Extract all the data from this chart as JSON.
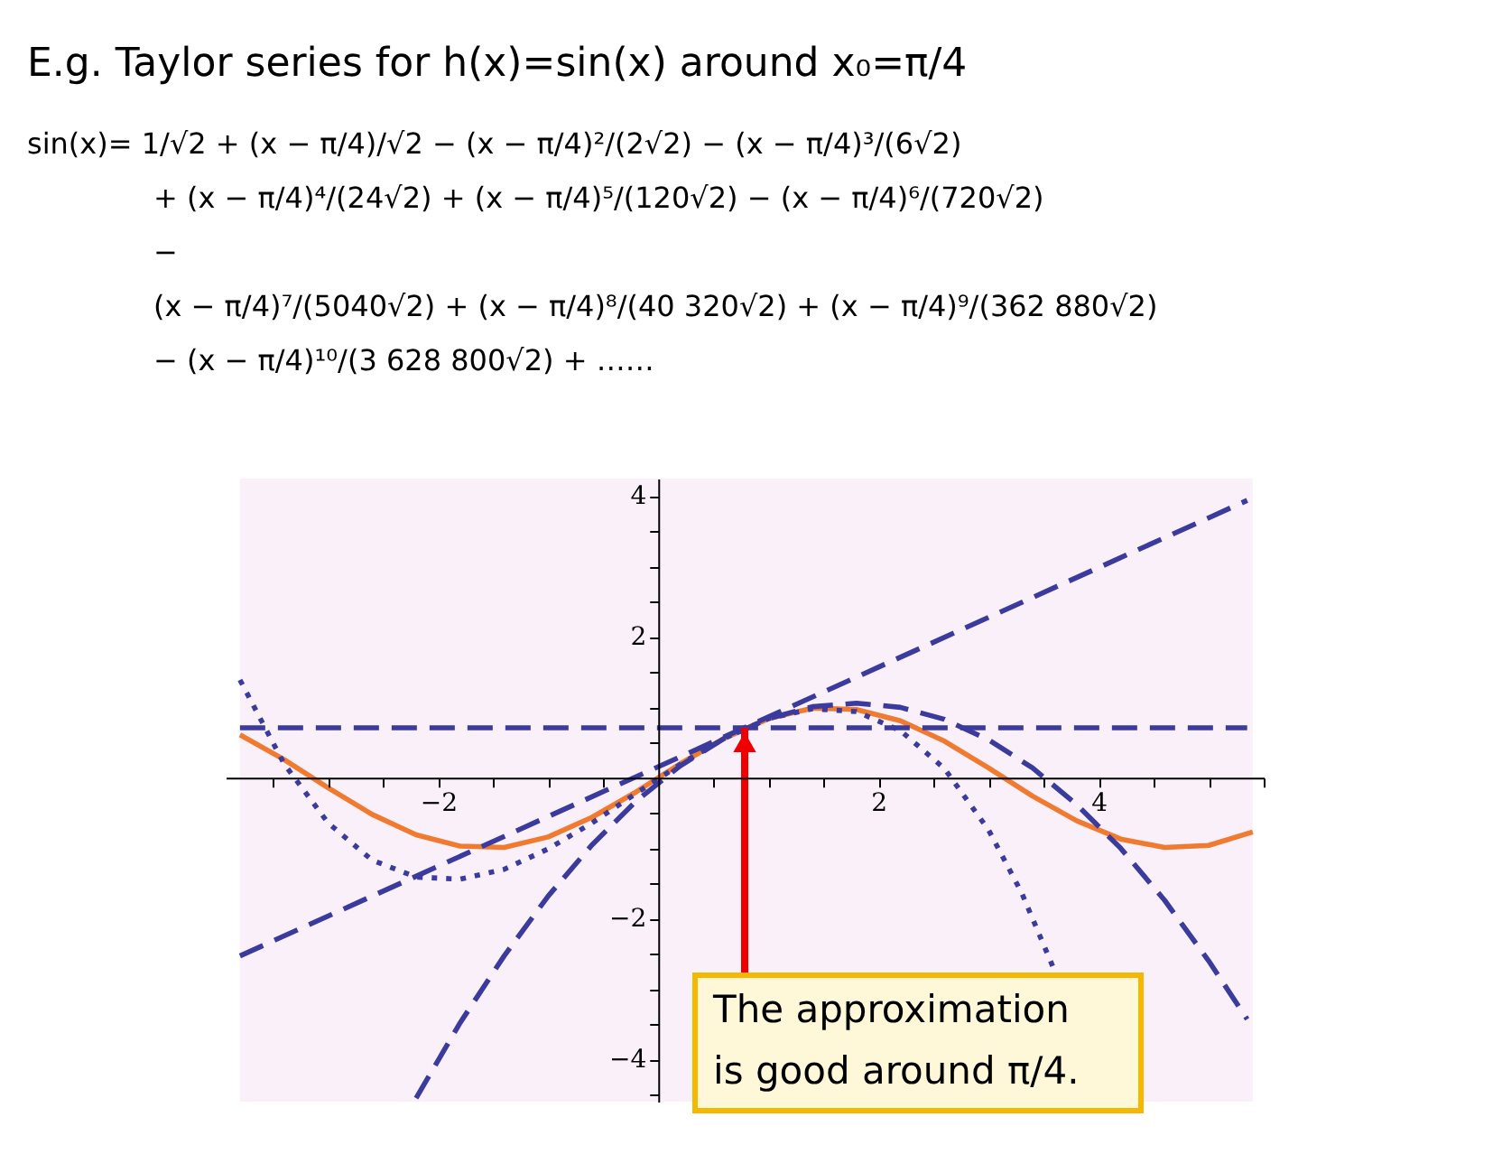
{
  "chart_data": {
    "type": "line",
    "title": "E.g. Taylor series for h(x)=sin(x) around x₀=π/4",
    "annotations": [
      "sin(x)= 1/√2 + (x − π/4)/√2 − (x − π/4)²/(2√2) − (x − π/4)³/(6√2) + (x − π/4)⁴/(24√2) + (x − π/4)⁵/(120√2) − (x − π/4)⁶/(720√2) −",
      "(x − π/4)⁷/(5040√2) + (x − π/4)⁸/(40 320√2) + (x − π/4)⁹/(362 880√2) − (x − π/4)¹⁰/(3 628 800√2) + ……",
      {
        "text": "The approximation\nis good around π/4.",
        "x": 0.785,
        "y": 0.71
      }
    ],
    "series": [
      {
        "color": "#f07a30",
        "line_style": "solid",
        "x": [
          -3.8,
          -3.4,
          -3.0,
          -2.6,
          -2.2,
          -1.8,
          -1.4,
          -1.0,
          -0.6,
          -0.2,
          0.2,
          0.6,
          1.0,
          1.4,
          1.8,
          2.2,
          2.6,
          3.0,
          3.4,
          3.8,
          4.2,
          4.6,
          5.0,
          5.4
        ],
        "values": [
          0.61,
          0.26,
          -0.14,
          -0.52,
          -0.81,
          -0.97,
          -0.99,
          -0.84,
          -0.56,
          -0.2,
          0.2,
          0.56,
          0.84,
          0.99,
          0.97,
          0.81,
          0.52,
          0.14,
          -0.26,
          -0.61,
          -0.87,
          -0.99,
          -0.96,
          -0.77
        ]
      },
      {
        "color": "#3b3b9e",
        "line_style": "dashed",
        "x": [
          -3.8,
          5.35
        ],
        "values": [
          0.71,
          0.71
        ]
      },
      {
        "color": "#3b3b9e",
        "line_style": "dashed",
        "x": [
          -3.8,
          5.35
        ],
        "values": [
          -2.53,
          3.94
        ]
      },
      {
        "color": "#3b3b9e",
        "line_style": "dashed",
        "x": [
          -2.2,
          -1.8,
          -1.4,
          -1.0,
          -0.6,
          -0.2,
          0.2,
          0.6,
          1.0,
          1.4,
          1.8,
          2.2,
          2.6,
          3.0,
          3.4,
          3.8,
          4.2,
          4.6,
          5.0,
          5.35
        ],
        "values": [
          -4.55,
          -3.48,
          -2.53,
          -1.68,
          -0.95,
          -0.33,
          0.17,
          0.56,
          0.84,
          1.01,
          1.06,
          1.0,
          0.83,
          0.54,
          0.14,
          -0.38,
          -1.0,
          -1.74,
          -2.6,
          -3.43
        ]
      },
      {
        "color": "#3b3b9e",
        "line_style": "dotted",
        "x": [
          -3.8,
          -3.4,
          -3.0,
          -2.6,
          -2.2,
          -1.8,
          -1.4,
          -1.0,
          -0.6,
          -0.2,
          0.2,
          0.6,
          1.0,
          1.4,
          1.8,
          2.2,
          2.6,
          3.0,
          3.3,
          3.6
        ],
        "values": [
          1.39,
          0.2,
          -0.64,
          -1.17,
          -1.41,
          -1.44,
          -1.3,
          -1.01,
          -0.64,
          -0.22,
          0.19,
          0.56,
          0.84,
          0.98,
          0.94,
          0.67,
          0.13,
          -0.74,
          -1.63,
          -2.74
        ]
      }
    ],
    "bands": [
      {
        "axis": "x",
        "from": -3.8,
        "to": 5.4,
        "color": "#f9f0f9"
      }
    ],
    "xlim": [
      -3.93,
      5.5
    ],
    "ylim": [
      -4.6,
      4.25
    ],
    "xticks": [
      {
        "value": -3.5,
        "label": null
      },
      {
        "value": -3,
        "label": null
      },
      {
        "value": -2.5,
        "label": null
      },
      -2,
      {
        "value": -1.5,
        "label": null
      },
      {
        "value": -1,
        "label": null
      },
      {
        "value": -0.5,
        "label": null
      },
      {
        "value": 0.5,
        "label": null
      },
      {
        "value": 1,
        "label": null
      },
      {
        "value": 1.5,
        "label": null
      },
      2,
      {
        "value": 2.5,
        "label": null
      },
      {
        "value": 3,
        "label": null
      },
      {
        "value": 3.5,
        "label": null
      },
      4,
      {
        "value": 4.5,
        "label": null
      },
      {
        "value": 5,
        "label": null
      },
      {
        "value": 5.5,
        "label": null
      }
    ],
    "yticks": [
      {
        "value": -4.5,
        "label": null
      },
      -4,
      {
        "value": -3.5,
        "label": null
      },
      {
        "value": -3,
        "label": null
      },
      {
        "value": -2.5,
        "label": null
      },
      -2,
      {
        "value": -1.5,
        "label": null
      },
      {
        "value": -1,
        "label": null
      },
      {
        "value": -0.5,
        "label": null
      },
      {
        "value": 0.5,
        "label": null
      },
      {
        "value": 1,
        "label": null
      },
      {
        "value": 1.5,
        "label": null
      },
      2,
      {
        "value": 2.5,
        "label": null
      },
      {
        "value": 3,
        "label": null
      },
      {
        "value": 3.5,
        "label": null
      },
      4
    ],
    "grid": false
  }
}
